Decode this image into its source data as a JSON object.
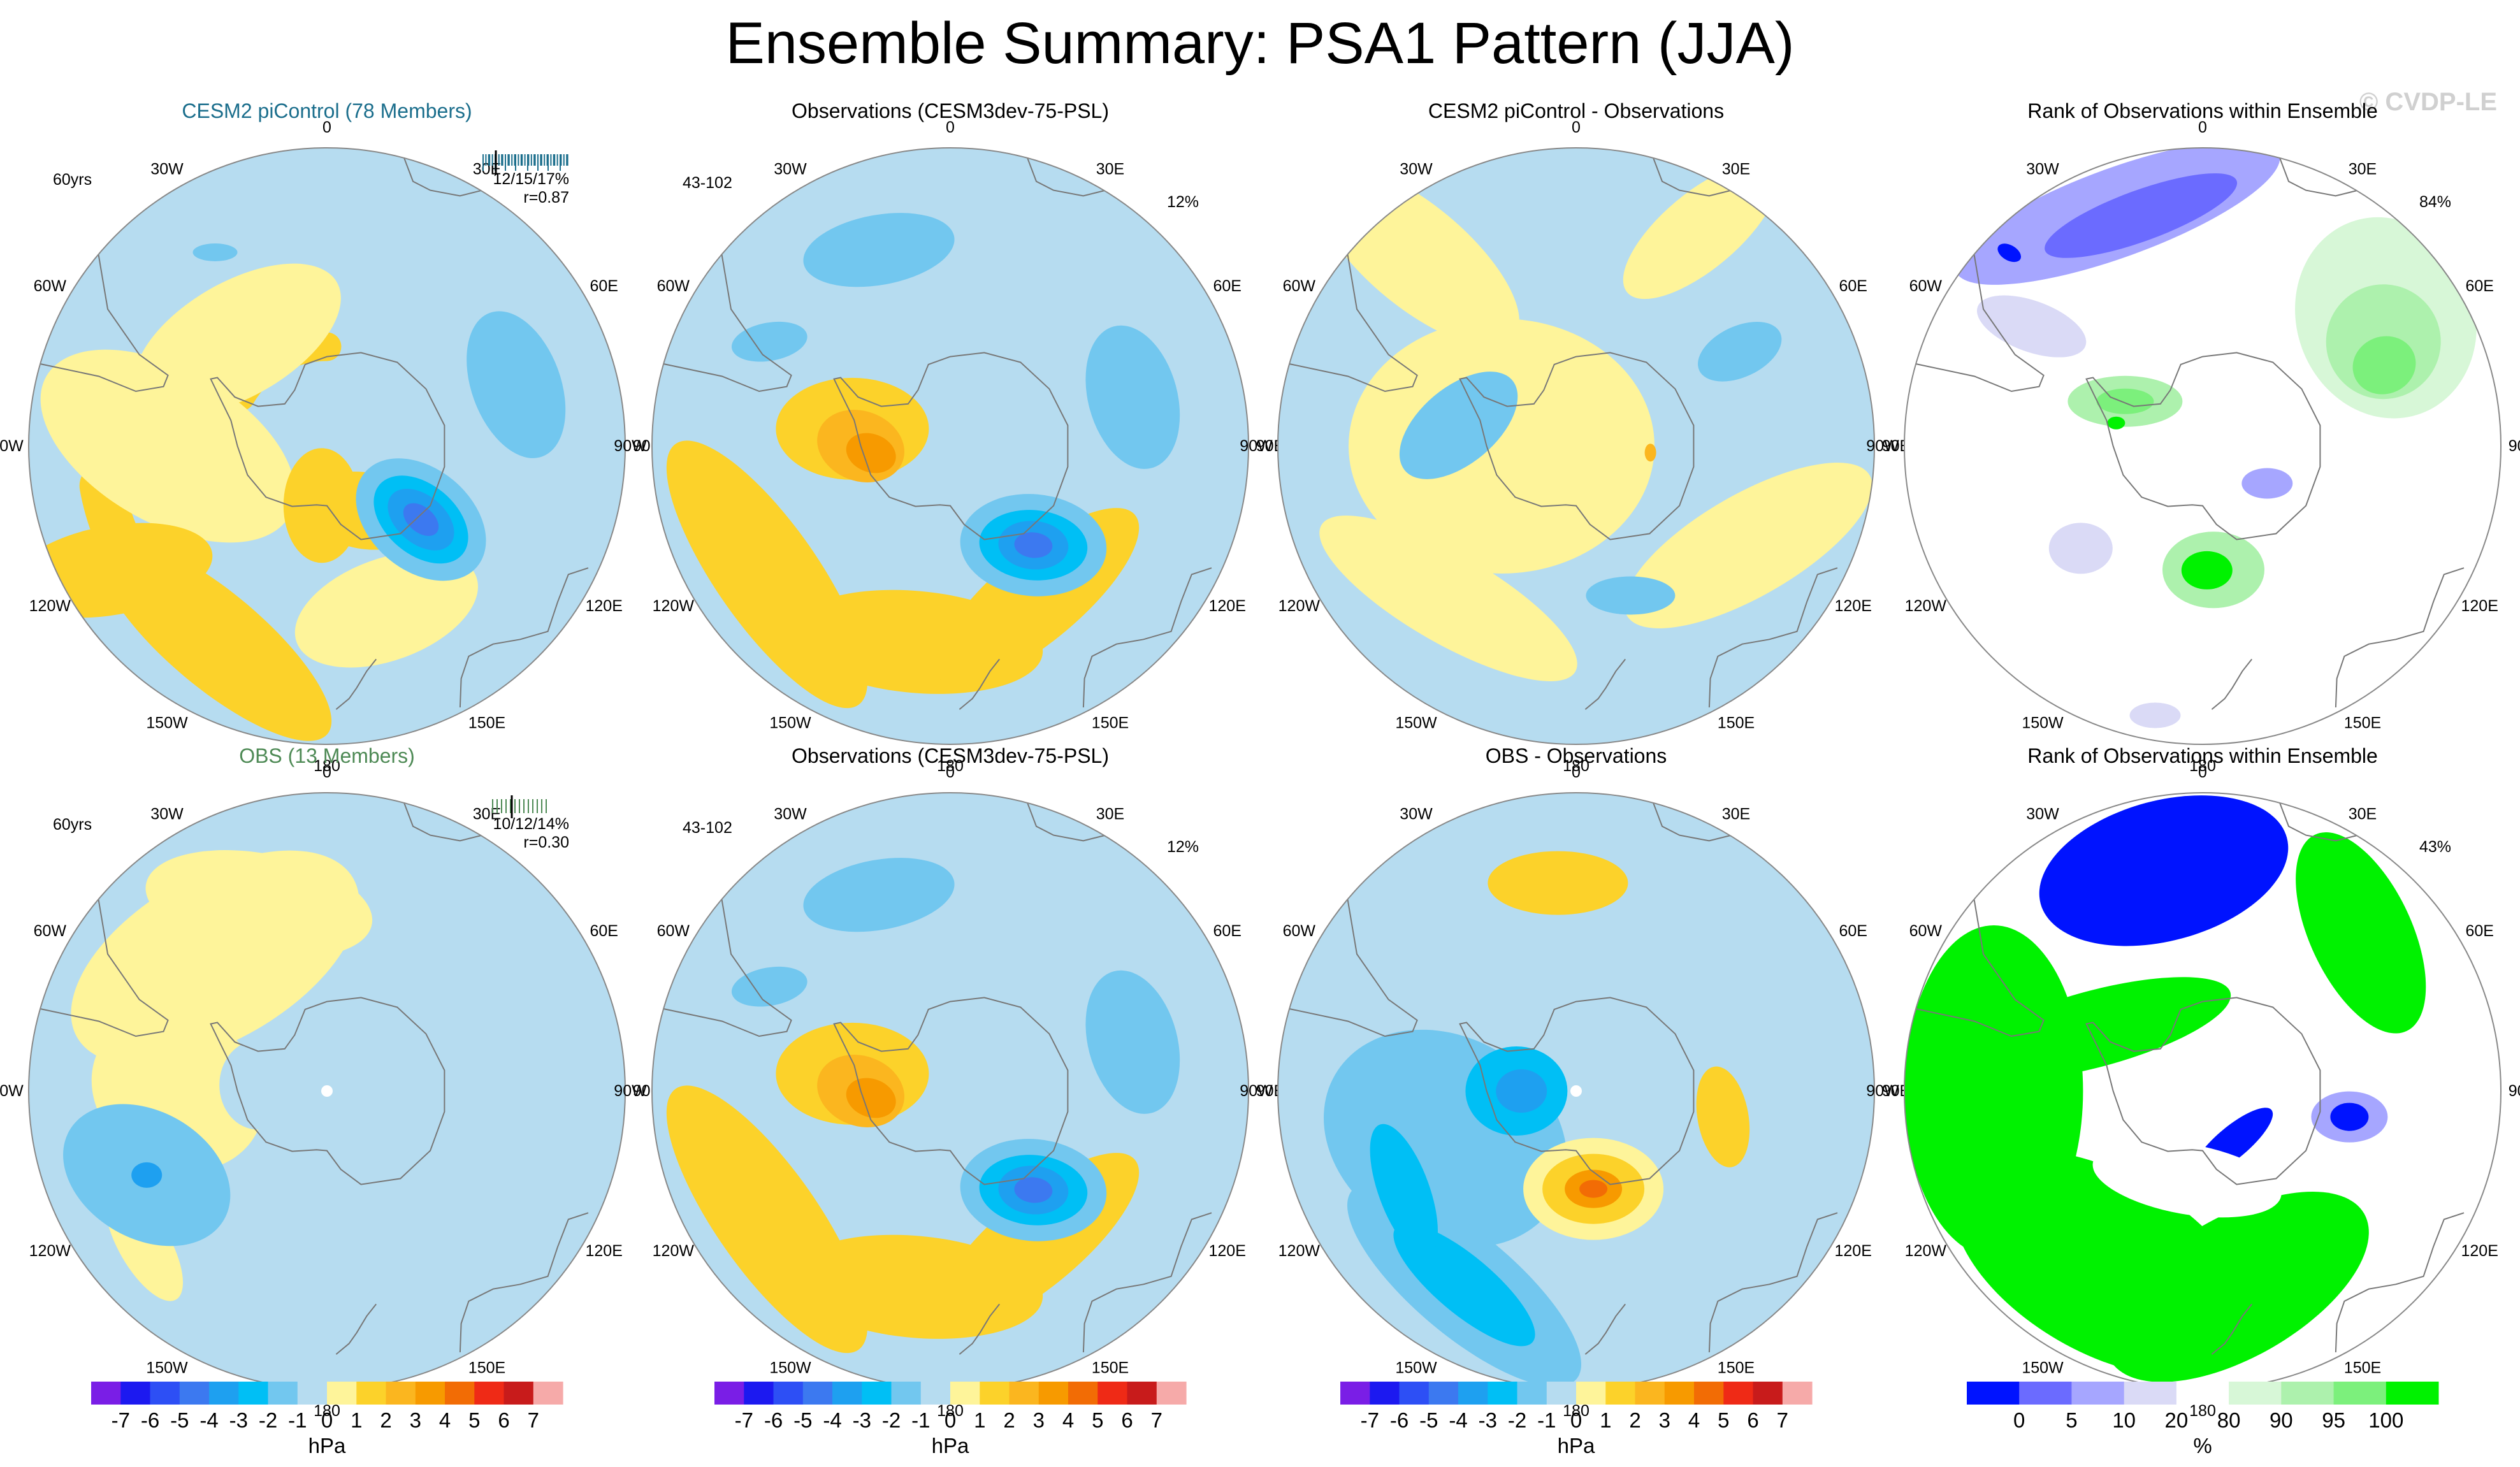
{
  "figure": {
    "title": "Ensemble Summary: PSA1 Pattern (JJA)",
    "credit": "© CVDP-LE"
  },
  "colors": {
    "ocean": "#b6dcf0",
    "land_line": "#777777",
    "circle": "#888888",
    "ens_title": "#1b6e8c",
    "obs_title": "#4e8a55"
  },
  "hpa_scale": {
    "levels": [
      "-7",
      "-6",
      "-5",
      "-4",
      "-3",
      "-2",
      "-1",
      "0",
      "1",
      "2",
      "3",
      "4",
      "5",
      "6",
      "7"
    ],
    "colors": [
      "#7a1ee6",
      "#1c19f0",
      "#2d4ff5",
      "#3c79f0",
      "#1ea0f0",
      "#00bff5",
      "#72c7ef",
      "#b6dcf0",
      "#fef49a",
      "#fcd22a",
      "#fbb61f",
      "#f79a00",
      "#f26c05",
      "#ef2a16",
      "#c81b1b",
      "#f6aaa9"
    ],
    "unit": "hPa"
  },
  "rank_scale": {
    "levels": [
      "0",
      "5",
      "10",
      "20",
      "80",
      "90",
      "95",
      "100"
    ],
    "colors": [
      "#0013ff",
      "#6b6bff",
      "#a6a6ff",
      "#dadaf6",
      "#ffffff",
      "#d7f7d7",
      "#adf1ad",
      "#7cf07c",
      "#00f200"
    ],
    "unit": "%"
  },
  "longitude_labels": [
    "0",
    "30E",
    "60E",
    "90E",
    "120E",
    "150E",
    "180",
    "150W",
    "120W",
    "90W",
    "60W",
    "30W"
  ],
  "row1": {
    "ens_panel": {
      "title": "CESM2 piControl (78 Members)",
      "period": "60yrs",
      "stats": "12/15/17%",
      "corr": "r=0.87",
      "chart_data": {
        "type": "heatmap",
        "projection": "south polar stereographic",
        "title": "CESM2 piControl (78 Members)",
        "units": "hPa",
        "features": [
          {
            "kind": "low",
            "lon": 128,
            "lat": -62,
            "value": -4
          },
          {
            "kind": "high",
            "lon": 160,
            "lat": -55,
            "value": 2
          },
          {
            "kind": "high",
            "lon": -80,
            "lat": -65,
            "value": 2
          },
          {
            "kind": "high",
            "lon": -90,
            "lat": -50,
            "value": 1.5
          },
          {
            "kind": "low",
            "lon": -60,
            "lat": -48,
            "value": -2
          }
        ]
      }
    },
    "obs_panel": {
      "title": "Observations (CESM3dev-75-PSL)",
      "period": "43-102",
      "pct": "12%",
      "chart_data": {
        "type": "heatmap",
        "projection": "south polar stereographic",
        "title": "Observations (CESM3dev-75-PSL)",
        "units": "hPa",
        "features": [
          {
            "kind": "low",
            "lon": 140,
            "lat": -65,
            "value": -4
          },
          {
            "kind": "high",
            "lon": 160,
            "lat": -50,
            "value": 2
          },
          {
            "kind": "high",
            "lon": -100,
            "lat": -72,
            "value": 3
          },
          {
            "kind": "low",
            "lon": -60,
            "lat": -55,
            "value": -2
          },
          {
            "kind": "low",
            "lon": -20,
            "lat": -45,
            "value": -2
          }
        ]
      }
    },
    "diff_panel": {
      "title": "CESM2 piControl - Observations",
      "chart_data": {
        "type": "heatmap",
        "projection": "south polar stereographic",
        "title": "CESM2 piControl - Observations",
        "units": "hPa",
        "features": [
          {
            "kind": "low",
            "lon": 30,
            "lat": -55,
            "value": -1.5
          },
          {
            "kind": "low",
            "lon": -105,
            "lat": -70,
            "value": -1
          },
          {
            "kind": "low",
            "lon": 160,
            "lat": -60,
            "value": -1
          },
          {
            "kind": "high",
            "lon": 110,
            "lat": -80,
            "value": 1
          }
        ]
      }
    },
    "rank_panel": {
      "title": "Rank of Observations within Ensemble",
      "pct": "84%",
      "chart_data": {
        "type": "heatmap",
        "projection": "south polar stereographic",
        "title": "Rank of Observations within Ensemble",
        "units": "%",
        "features": [
          {
            "kind": "rank-low",
            "lon": -30,
            "lat": -45,
            "value": 10
          },
          {
            "kind": "rank-high",
            "lon": 60,
            "lat": -50,
            "value": 90
          },
          {
            "kind": "rank-high",
            "lon": 170,
            "lat": -65,
            "value": 100
          },
          {
            "kind": "rank-high",
            "lon": -60,
            "lat": -75,
            "value": 95
          }
        ]
      }
    }
  },
  "row2": {
    "ens_panel": {
      "title": "OBS (13 Members)",
      "period": "60yrs",
      "stats": "10/12/14%",
      "corr": "r=0.30",
      "chart_data": {
        "type": "heatmap",
        "projection": "south polar stereographic",
        "title": "OBS (13 Members)",
        "units": "hPa",
        "features": [
          {
            "kind": "low",
            "lon": -110,
            "lat": -50,
            "value": -2
          },
          {
            "kind": "high",
            "lon": -40,
            "lat": -55,
            "value": 1
          },
          {
            "kind": "high",
            "lon": 0,
            "lat": -60,
            "value": 1
          }
        ]
      }
    },
    "obs_panel": {
      "title": "Observations (CESM3dev-75-PSL)",
      "period": "43-102",
      "pct": "12%",
      "chart_data": {
        "type": "heatmap",
        "projection": "south polar stereographic",
        "title": "Observations (CESM3dev-75-PSL)",
        "units": "hPa",
        "features": [
          {
            "kind": "low",
            "lon": 140,
            "lat": -65,
            "value": -4
          },
          {
            "kind": "high",
            "lon": 160,
            "lat": -50,
            "value": 2
          },
          {
            "kind": "high",
            "lon": -100,
            "lat": -72,
            "value": 3
          },
          {
            "kind": "low",
            "lon": -60,
            "lat": -55,
            "value": -2
          },
          {
            "kind": "low",
            "lon": -20,
            "lat": -45,
            "value": -2
          }
        ]
      }
    },
    "diff_panel": {
      "title": "OBS - Observations",
      "chart_data": {
        "type": "heatmap",
        "projection": "south polar stereographic",
        "title": "OBS - Observations",
        "units": "hPa",
        "features": [
          {
            "kind": "high",
            "lon": 170,
            "lat": -72,
            "value": 4
          },
          {
            "kind": "low",
            "lon": -90,
            "lat": -77,
            "value": -3
          },
          {
            "kind": "low",
            "lon": -150,
            "lat": -45,
            "value": -3
          },
          {
            "kind": "high",
            "lon": -5,
            "lat": -48,
            "value": 2
          },
          {
            "kind": "high",
            "lon": 100,
            "lat": -60,
            "value": 2
          }
        ]
      }
    },
    "rank_panel": {
      "title": "Rank of Observations within Ensemble",
      "pct": "43%",
      "chart_data": {
        "type": "heatmap",
        "projection": "south polar stereographic",
        "title": "Rank of Observations within Ensemble",
        "units": "%",
        "features": [
          {
            "kind": "rank-low",
            "lon": -10,
            "lat": -45,
            "value": 0
          },
          {
            "kind": "rank-high",
            "lon": 45,
            "lat": -45,
            "value": 100
          },
          {
            "kind": "rank-high",
            "lon": -150,
            "lat": -45,
            "value": 100
          },
          {
            "kind": "rank-low",
            "lon": 100,
            "lat": -60,
            "value": 0
          },
          {
            "kind": "rank-low",
            "lon": 150,
            "lat": -78,
            "value": 0
          }
        ]
      }
    }
  }
}
